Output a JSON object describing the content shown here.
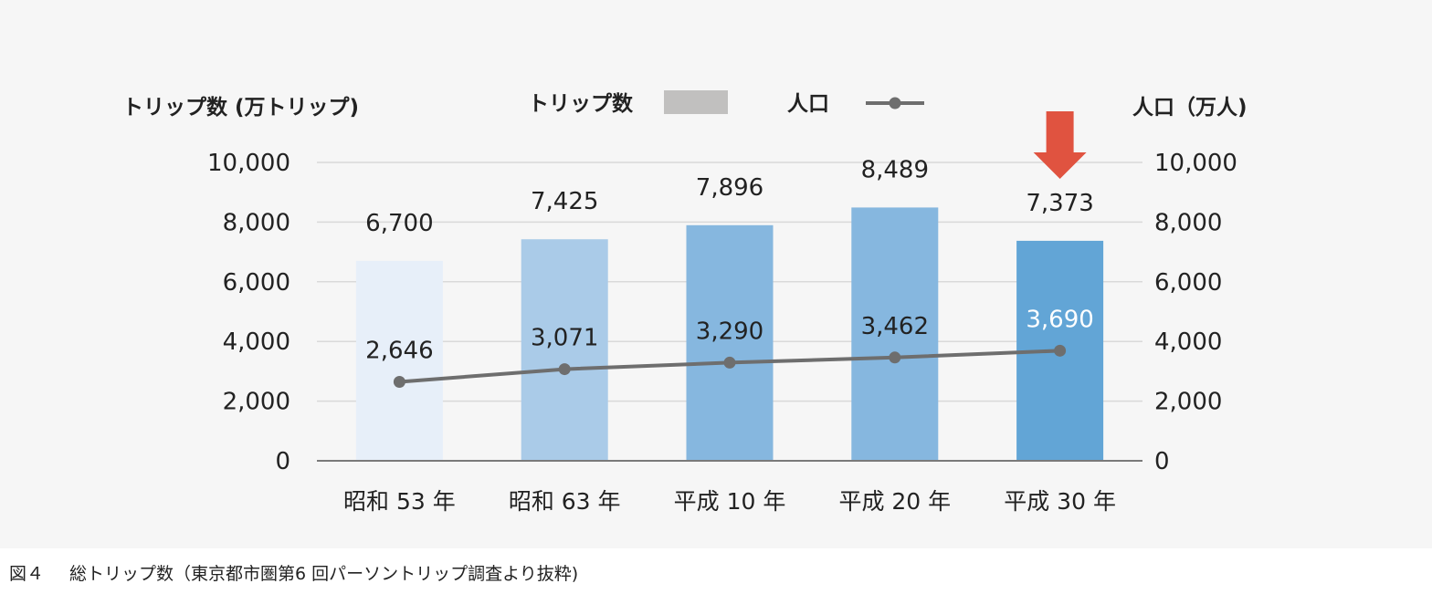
{
  "chart_data": {
    "type": "bar",
    "categories": [
      "昭和 53 年",
      "昭和 63 年",
      "平成 10 年",
      "平成 20 年",
      "平成 30 年"
    ],
    "series": [
      {
        "name": "トリップ数",
        "type": "bar",
        "axis": "left",
        "values": [
          6700,
          7425,
          7896,
          8489,
          7373
        ],
        "labels": [
          "6,700",
          "7,425",
          "7,896",
          "8,489",
          "7,373"
        ],
        "colors": [
          "#e7eff9",
          "#aacbe8",
          "#86b7df",
          "#86b7df",
          "#62a5d6"
        ],
        "legend_color": "#c1c0bf"
      },
      {
        "name": "人口",
        "type": "line",
        "axis": "right",
        "values": [
          2646,
          3071,
          3290,
          3462,
          3690
        ],
        "labels": [
          "2,646",
          "3,071",
          "3,290",
          "3,462",
          "3,690"
        ],
        "color": "#6e6e6e"
      }
    ],
    "ylabel_left": "トリップ数 (万トリップ)",
    "ylabel_right": "人口（万人)",
    "ylim_left": [
      0,
      10000
    ],
    "ylim_right": [
      0,
      10000
    ],
    "yticks_left": [
      "0",
      "2,000",
      "4,000",
      "6,000",
      "8,000",
      "10,000"
    ],
    "yticks_right": [
      "0",
      "2,000",
      "4,000",
      "6,000",
      "8,000",
      "10,000"
    ],
    "grid": true,
    "legend_position": "top-center",
    "annotation": {
      "type": "down-arrow",
      "category_index": 4,
      "color": "#e05340"
    }
  },
  "caption": {
    "figure": "図４",
    "text": "総トリップ数（東京都市圏第6 回パーソントリップ調査より抜粋)"
  }
}
